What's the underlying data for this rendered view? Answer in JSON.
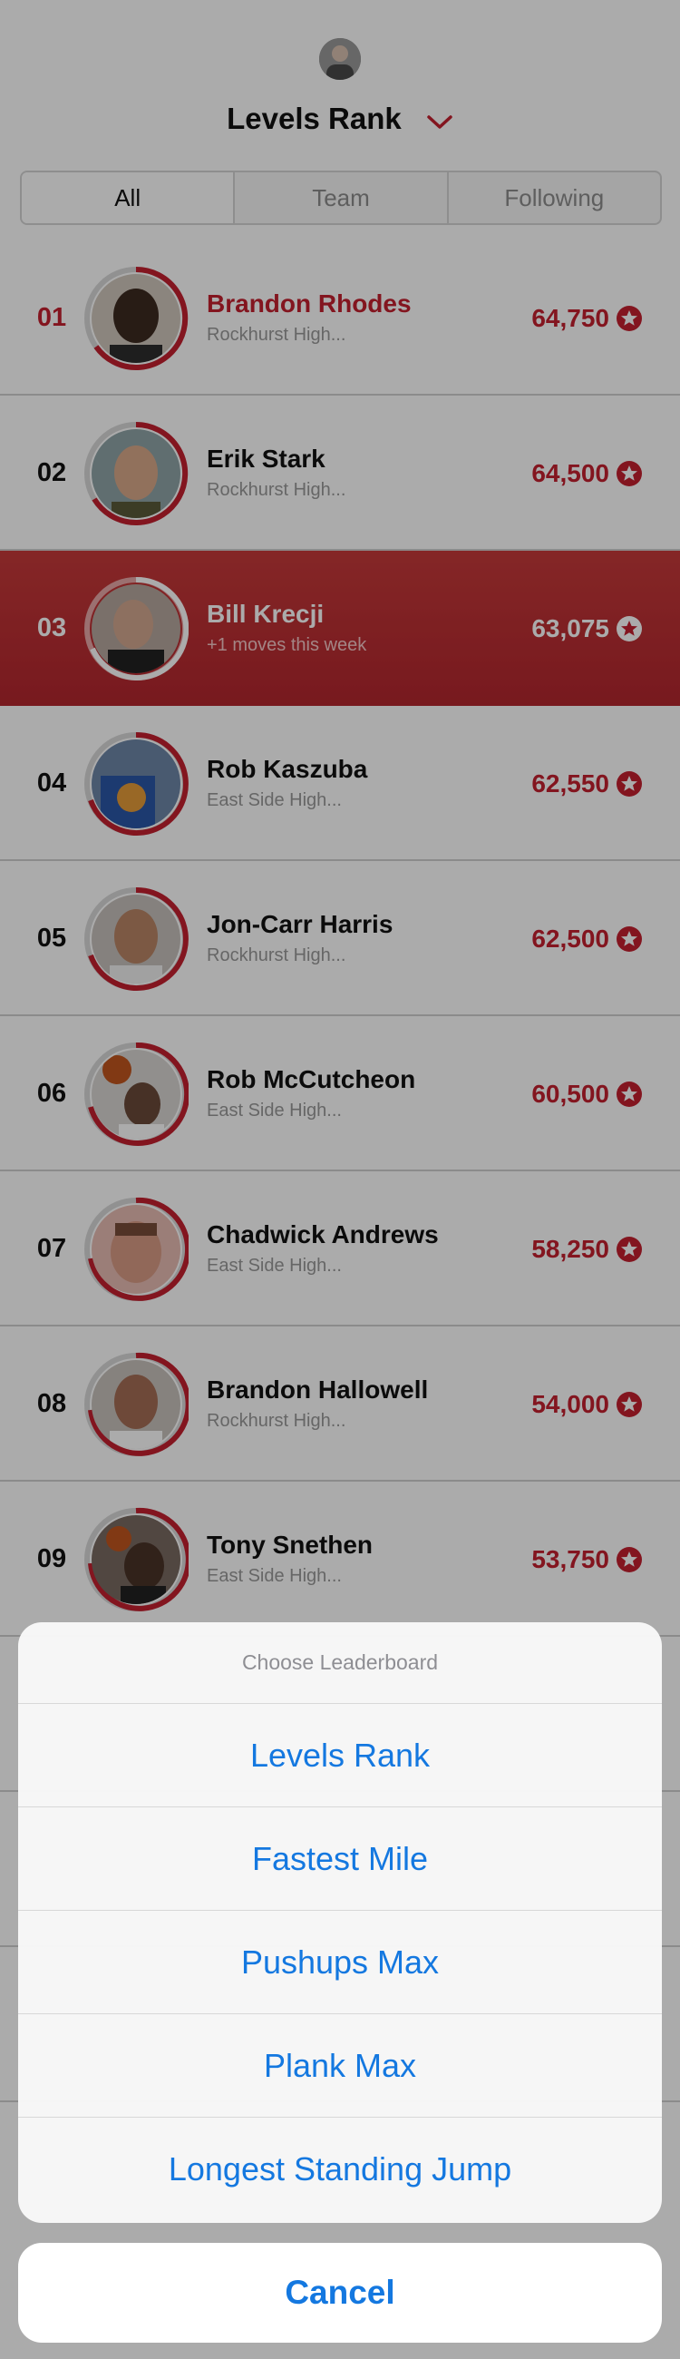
{
  "header": {
    "title": "Levels Rank",
    "chevron_icon": "chevron-down-icon"
  },
  "tabs": [
    {
      "label": "All",
      "active": true
    },
    {
      "label": "Team",
      "active": false
    },
    {
      "label": "Following",
      "active": false
    }
  ],
  "leaderboard": [
    {
      "rank": "01",
      "name": "Brandon Rhodes",
      "subtitle": "Rockhurst High...",
      "score": "64,750",
      "leader": true
    },
    {
      "rank": "02",
      "name": "Erik Stark",
      "subtitle": "Rockhurst High...",
      "score": "64,500"
    },
    {
      "rank": "03",
      "name": "Bill Krecji",
      "subtitle": "+1 moves this week",
      "score": "63,075",
      "highlight": true
    },
    {
      "rank": "04",
      "name": "Rob Kaszuba",
      "subtitle": "East Side High...",
      "score": "62,550"
    },
    {
      "rank": "05",
      "name": "Jon-Carr Harris",
      "subtitle": "Rockhurst High...",
      "score": "62,500"
    },
    {
      "rank": "06",
      "name": "Rob McCutcheon",
      "subtitle": "East Side High...",
      "score": "60,500"
    },
    {
      "rank": "07",
      "name": "Chadwick Andrews",
      "subtitle": "East Side High...",
      "score": "58,250"
    },
    {
      "rank": "08",
      "name": "Brandon Hallowell",
      "subtitle": "Rockhurst High...",
      "score": "54,000"
    },
    {
      "rank": "09",
      "name": "Tony Snethen",
      "subtitle": "East Side High...",
      "score": "53,750"
    }
  ],
  "action_sheet": {
    "title": "Choose Leaderboard",
    "options": [
      "Levels Rank",
      "Fastest Mile",
      "Pushups Max",
      "Plank Max",
      "Longest Standing Jump"
    ],
    "cancel_label": "Cancel"
  },
  "colors": {
    "accent_red": "#c3202f",
    "ios_blue": "#1478e0",
    "ring_grey": "#d9d9d9"
  }
}
